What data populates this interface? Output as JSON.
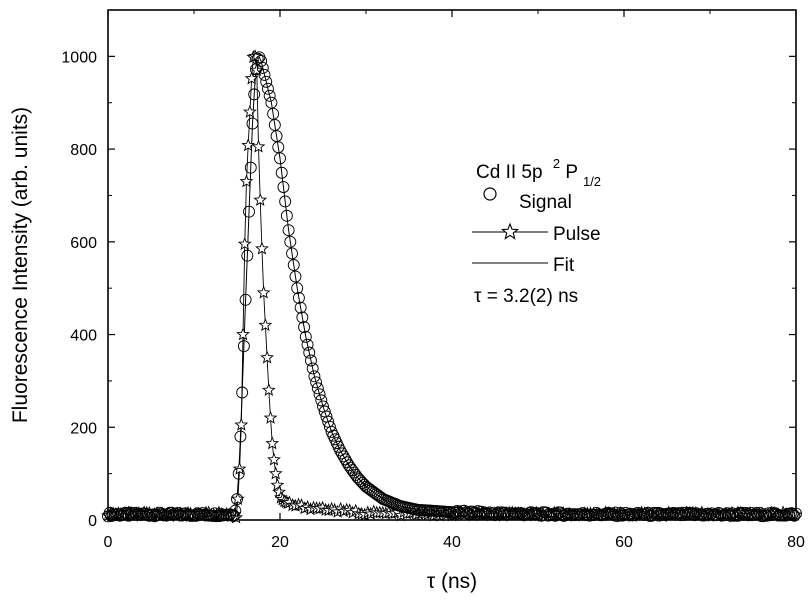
{
  "chart_data": {
    "type": "scatter",
    "title": "",
    "xlabel": "τ (ns)",
    "ylabel": "Fluorescence Intensity (arb. units)",
    "xlim": [
      0,
      80
    ],
    "ylim": [
      0,
      1100
    ],
    "x_ticks": [
      0,
      20,
      40,
      60,
      80
    ],
    "y_ticks": [
      0,
      200,
      400,
      600,
      800,
      1000
    ],
    "grid": false,
    "legend_position": "right",
    "legend": {
      "title_main": "Cd II 5p",
      "title_sup": "2",
      "title_term": "P",
      "title_sub": "1/2",
      "signal_label": "Signal",
      "pulse_label": "Pulse",
      "fit_label": "Fit",
      "annotation": "τ = 3.2(2) ns"
    },
    "series": [
      {
        "name": "Signal",
        "marker": "circle",
        "x_start": 14.6,
        "x_step": 0.2,
        "x_end": 80,
        "baseline": 12,
        "values": [
          [
            14.6,
            10
          ],
          [
            14.8,
            20
          ],
          [
            15.0,
            45
          ],
          [
            15.2,
            100
          ],
          [
            15.4,
            180
          ],
          [
            15.6,
            275
          ],
          [
            15.8,
            375
          ],
          [
            16.0,
            475
          ],
          [
            16.2,
            570
          ],
          [
            16.4,
            665
          ],
          [
            16.6,
            760
          ],
          [
            16.8,
            855
          ],
          [
            17.0,
            918
          ],
          [
            17.2,
            972
          ],
          [
            17.4,
            995
          ],
          [
            17.6,
            998
          ],
          [
            17.8,
            990
          ],
          [
            18.0,
            975
          ],
          [
            18.4,
            945
          ],
          [
            19.0,
            900
          ],
          [
            20.0,
            780
          ],
          [
            21.0,
            625
          ],
          [
            22.0,
            500
          ],
          [
            23.0,
            395
          ],
          [
            24.0,
            310
          ],
          [
            25.0,
            245
          ],
          [
            26.0,
            190
          ],
          [
            27.0,
            150
          ],
          [
            28.0,
            118
          ],
          [
            29.0,
            92
          ],
          [
            30.0,
            72
          ],
          [
            32.0,
            45
          ],
          [
            34.0,
            30
          ],
          [
            36.0,
            22
          ],
          [
            40.0,
            17
          ],
          [
            45.0,
            14
          ],
          [
            50.0,
            13
          ],
          [
            60.0,
            12
          ],
          [
            70.0,
            12
          ],
          [
            80.0,
            12
          ]
        ]
      },
      {
        "name": "Pulse",
        "marker": "star",
        "line": true,
        "values": [
          [
            14.9,
            5
          ],
          [
            15.1,
            45
          ],
          [
            15.3,
            110
          ],
          [
            15.5,
            205
          ],
          [
            15.7,
            400
          ],
          [
            15.9,
            595
          ],
          [
            16.1,
            730
          ],
          [
            16.3,
            808
          ],
          [
            16.5,
            880
          ],
          [
            16.7,
            952
          ],
          [
            16.9,
            998
          ],
          [
            17.1,
            1000
          ],
          [
            17.3,
            970
          ],
          [
            17.5,
            805
          ],
          [
            17.7,
            690
          ],
          [
            17.9,
            585
          ],
          [
            18.1,
            490
          ],
          [
            18.3,
            420
          ],
          [
            18.5,
            350
          ],
          [
            18.7,
            280
          ],
          [
            18.9,
            220
          ],
          [
            19.1,
            165
          ],
          [
            19.3,
            130
          ],
          [
            19.5,
            100
          ],
          [
            19.7,
            75
          ],
          [
            19.9,
            60
          ],
          [
            20.1,
            48
          ],
          [
            20.5,
            40
          ],
          [
            21.0,
            35
          ],
          [
            22.0,
            30
          ],
          [
            24.0,
            26
          ],
          [
            26.0,
            22
          ],
          [
            28.0,
            18
          ],
          [
            30.0,
            15
          ],
          [
            35.0,
            13
          ],
          [
            40.0,
            12
          ],
          [
            50.0,
            12
          ],
          [
            60.0,
            12
          ],
          [
            70.0,
            12
          ],
          [
            80.0,
            12
          ]
        ]
      },
      {
        "name": "Fit",
        "marker": "none",
        "line": true,
        "lifetime_ns": 3.2
      }
    ]
  }
}
